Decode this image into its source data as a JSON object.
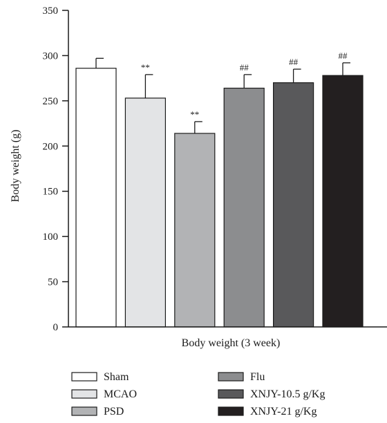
{
  "chart_data": {
    "type": "bar",
    "title": "",
    "xlabel": "Body weight (3 week)",
    "ylabel": "Body weight (g)",
    "ylim": [
      0,
      350
    ],
    "yticks": [
      0,
      50,
      100,
      150,
      200,
      250,
      300,
      350
    ],
    "grid": false,
    "legend_position": "bottom",
    "categories": [
      "Sham",
      "MCAO",
      "PSD",
      "Flu",
      "XNJY-10.5 g/Kg",
      "XNJY-21 g/Kg"
    ],
    "values": [
      286,
      253,
      214,
      264,
      270,
      278
    ],
    "errors": [
      11,
      26,
      13,
      15,
      15,
      14
    ],
    "annotations": [
      "",
      "**",
      "**",
      "##",
      "##",
      "##"
    ],
    "colors": [
      "#ffffff",
      "#e3e4e6",
      "#b2b3b5",
      "#8c8d8f",
      "#59595b",
      "#231f20"
    ]
  }
}
